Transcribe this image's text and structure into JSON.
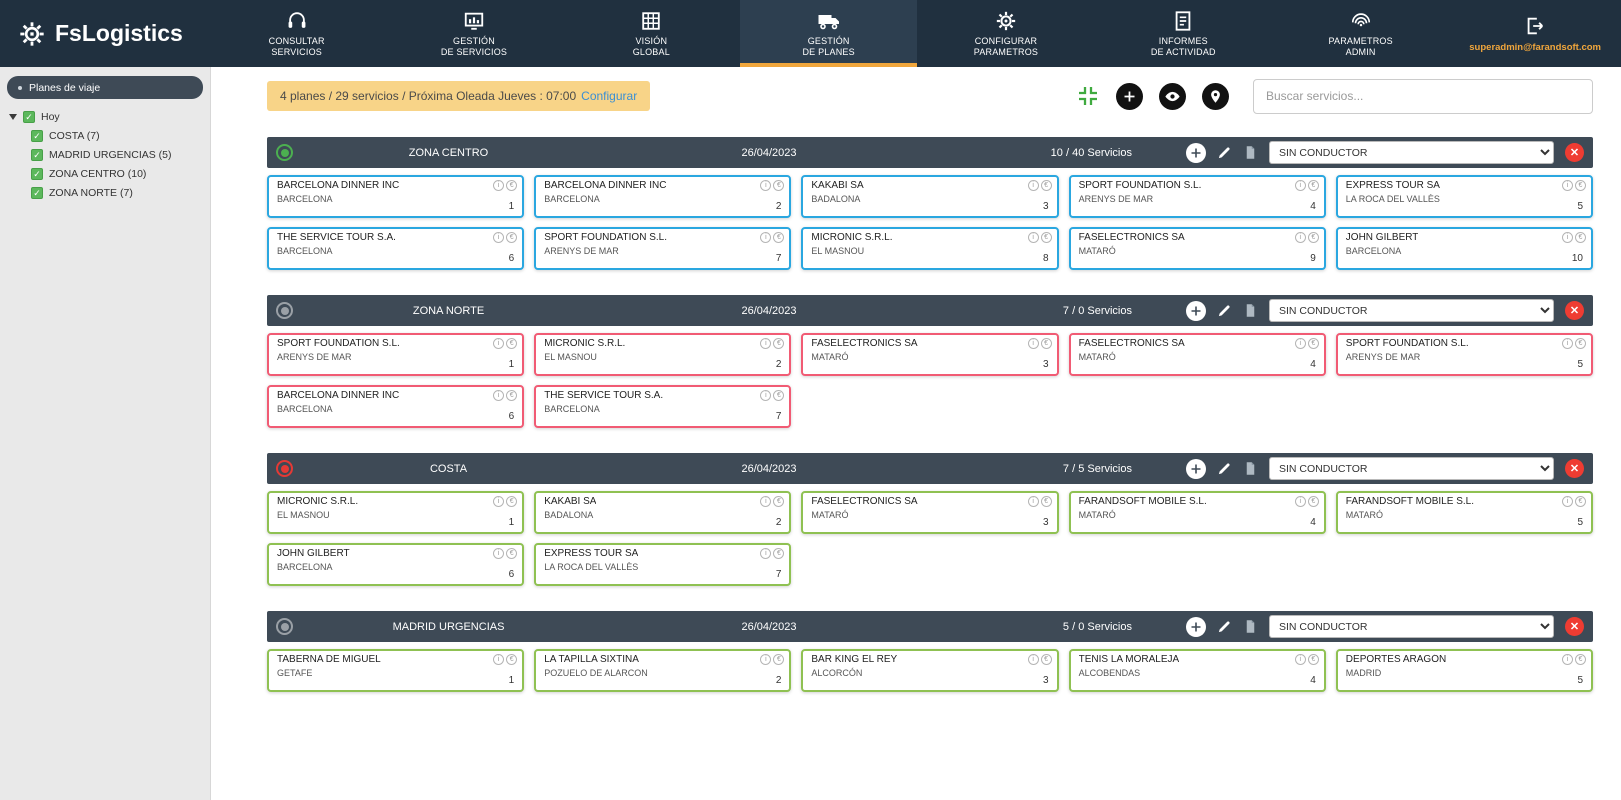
{
  "colors": {
    "accent_orange": "#f0a63c",
    "header_dark": "#3e4a56",
    "navbar_dark": "#20303f",
    "close_red": "#ef3c32",
    "plan_blue": "#2aa7e0",
    "plan_pink": "#f15b74",
    "plan_green": "#8fc152"
  },
  "badges": {
    "info": "i",
    "euro": "€"
  },
  "navbar": {
    "logo": "FsLogistics",
    "user_email": "superadmin@farandsoft.com",
    "items": [
      {
        "name": "consultar-servicios",
        "icon": "headset-icon",
        "svg": "headset",
        "lines": [
          "CONSULTAR",
          "SERVICIOS"
        ],
        "active": false
      },
      {
        "name": "gestion-de-servicios",
        "icon": "chart-icon",
        "svg": "chart",
        "lines": [
          "GESTIÓN",
          "DE SERVICIOS"
        ],
        "active": false
      },
      {
        "name": "vision-global",
        "icon": "grid-icon",
        "svg": "grid",
        "lines": [
          "VISIÓN",
          "GLOBAL"
        ],
        "active": false
      },
      {
        "name": "gestion-de-planes",
        "icon": "truck-icon",
        "svg": "truck",
        "lines": [
          "GESTIÓN",
          "DE PLANES"
        ],
        "active": true
      },
      {
        "name": "configurar-parametros",
        "icon": "gear-icon",
        "svg": "gear",
        "lines": [
          "CONFIGURAR",
          "PARAMETROS"
        ],
        "active": false
      },
      {
        "name": "informes-de-actividad",
        "icon": "report-icon",
        "svg": "report",
        "lines": [
          "INFORMES",
          "DE ACTIVIDAD"
        ],
        "active": false
      },
      {
        "name": "parametros-admin",
        "icon": "fingerprint-icon",
        "svg": "fingerprint",
        "lines": [
          "PARAMETROS",
          "ADMIN"
        ],
        "active": false
      }
    ]
  },
  "sidebar": {
    "title": "Planes de viaje",
    "root": "Hoy",
    "items": [
      {
        "label": "COSTA (7)"
      },
      {
        "label": "MADRID URGENCIAS (5)"
      },
      {
        "label": "ZONA CENTRO (10)"
      },
      {
        "label": "ZONA NORTE (7)"
      }
    ]
  },
  "toolbar": {
    "summary": "4 planes / 29 servicios / Próxima Oleada Jueves : 07:00",
    "configure_link": "Configurar",
    "search_placeholder": "Buscar servicios..."
  },
  "plans": [
    {
      "name": "ZONA CENTRO",
      "date": "26/04/2023",
      "services": "10 / 40 Servicios",
      "driver": "SIN CONDUCTOR",
      "status": "green",
      "color": "#2aa7e0",
      "cards": [
        {
          "company": "BARCELONA DINNER INC",
          "city": "BARCELONA",
          "num": "1"
        },
        {
          "company": "BARCELONA DINNER INC",
          "city": "BARCELONA",
          "num": "2"
        },
        {
          "company": "KAKABI SA",
          "city": "BADALONA",
          "num": "3"
        },
        {
          "company": "SPORT FOUNDATION S.L.",
          "city": "ARENYS DE MAR",
          "num": "4"
        },
        {
          "company": "EXPRESS TOUR SA",
          "city": "LA ROCA DEL VALLÈS",
          "num": "5"
        },
        {
          "company": "THE SERVICE TOUR S.A.",
          "city": "BARCELONA",
          "num": "6"
        },
        {
          "company": "SPORT FOUNDATION S.L.",
          "city": "ARENYS DE MAR",
          "num": "7"
        },
        {
          "company": "MICRONIC S.R.L.",
          "city": "EL MASNOU",
          "num": "8"
        },
        {
          "company": "FASELECTRONICS SA",
          "city": "MATARÓ",
          "num": "9"
        },
        {
          "company": "JOHN GILBERT",
          "city": "BARCELONA",
          "num": "10"
        }
      ]
    },
    {
      "name": "ZONA NORTE",
      "date": "26/04/2023",
      "services": "7 / 0 Servicios",
      "driver": "SIN CONDUCTOR",
      "status": "gray",
      "color": "#f15b74",
      "cards": [
        {
          "company": "SPORT FOUNDATION S.L.",
          "city": "ARENYS DE MAR",
          "num": "1"
        },
        {
          "company": "MICRONIC S.R.L.",
          "city": "EL MASNOU",
          "num": "2"
        },
        {
          "company": "FASELECTRONICS SA",
          "city": "MATARÓ",
          "num": "3"
        },
        {
          "company": "FASELECTRONICS SA",
          "city": "MATARÓ",
          "num": "4"
        },
        {
          "company": "SPORT FOUNDATION S.L.",
          "city": "ARENYS DE MAR",
          "num": "5"
        },
        {
          "company": "BARCELONA DINNER INC",
          "city": "BARCELONA",
          "num": "6"
        },
        {
          "company": "THE SERVICE TOUR S.A.",
          "city": "BARCELONA",
          "num": "7"
        }
      ]
    },
    {
      "name": "COSTA",
      "date": "26/04/2023",
      "services": "7 / 5 Servicios",
      "driver": "SIN CONDUCTOR",
      "status": "red",
      "color": "#8fc152",
      "cards": [
        {
          "company": "MICRONIC S.R.L.",
          "city": "EL MASNOU",
          "num": "1"
        },
        {
          "company": "KAKABI SA",
          "city": "BADALONA",
          "num": "2"
        },
        {
          "company": "FASELECTRONICS SA",
          "city": "MATARÓ",
          "num": "3"
        },
        {
          "company": "FARANDSOFT MOBILE S.L.",
          "city": "MATARÓ",
          "num": "4"
        },
        {
          "company": "FARANDSOFT MOBILE S.L.",
          "city": "MATARÓ",
          "num": "5"
        },
        {
          "company": "JOHN GILBERT",
          "city": "BARCELONA",
          "num": "6"
        },
        {
          "company": "EXPRESS TOUR SA",
          "city": "LA ROCA DEL VALLÈS",
          "num": "7"
        }
      ]
    },
    {
      "name": "MADRID URGENCIAS",
      "date": "26/04/2023",
      "services": "5 / 0 Servicios",
      "driver": "SIN CONDUCTOR",
      "status": "gray",
      "color": "#8fc152",
      "cards": [
        {
          "company": "TABERNA DE MIGUEL",
          "city": "GETAFE",
          "num": "1"
        },
        {
          "company": "LA TAPILLA SIXTINA",
          "city": "POZUELO DE ALARCON",
          "num": "2"
        },
        {
          "company": "BAR KING EL REY",
          "city": "ALCORCÓN",
          "num": "3"
        },
        {
          "company": "TENIS LA MORALEJA",
          "city": "ALCOBENDAS",
          "num": "4"
        },
        {
          "company": "DEPORTES ARAGÓN",
          "city": "MADRID",
          "num": "5"
        }
      ]
    }
  ]
}
